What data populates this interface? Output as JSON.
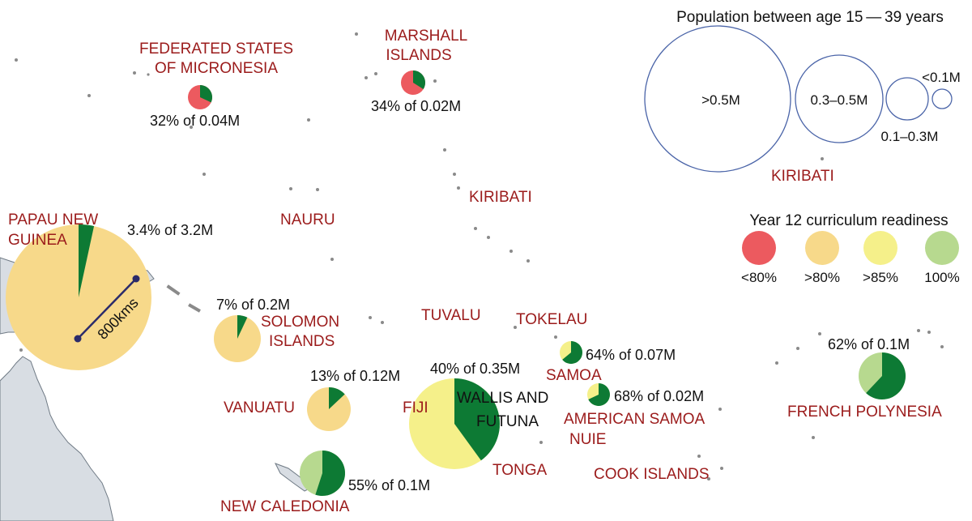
{
  "colors": {
    "below80": "#ec5a5f",
    "above80": "#f7d98a",
    "above85": "#f5f08a",
    "full100": "#b7d98f",
    "share": "#0d7a34",
    "country": "#9b1b1b",
    "bubble_outline": "#4a64a8"
  },
  "countries": {
    "micronesia_l1": "FEDERATED STATES",
    "micronesia_l2": "OF MICRONESIA",
    "marshall_l1": "MARSHALL",
    "marshall_l2": "ISLANDS",
    "kiribati_center": "KIRIBATI",
    "kiribati_right": "KIRIBATI",
    "nauru": "NAURU",
    "png_l1": "PAPAU NEW",
    "png_l2": "GUINEA",
    "solomon_l1": "SOLOMON",
    "solomon_l2": "ISLANDS",
    "tuvalu": "TUVALU",
    "tokelau": "TOKELAU",
    "samoa": "SAMOA",
    "american_samoa": "AMERICAN SAMOA",
    "nuie": "NUIE",
    "vanuatu": "VANUATU",
    "fiji": "FIJI",
    "wallis_l1": "WALLIS AND",
    "wallis_l2": "FUTUNA",
    "tonga": "TONGA",
    "cook": "COOK ISLANDS",
    "new_caledonia": "NEW CALEDONIA",
    "french_polynesia": "FRENCH POLYNESIA"
  },
  "stats": {
    "micronesia": "32% of 0.04M",
    "marshall": "34% of 0.02M",
    "png": "3.4% of 3.2M",
    "solomon": "7% of 0.2M",
    "vanuatu": "13% of 0.12M",
    "fiji": "40% of 0.35M",
    "samoa": "64% of 0.07M",
    "american_samoa": "68% of 0.02M",
    "new_caledonia": "55% of 0.1M",
    "french_polynesia": "62% of 0.1M"
  },
  "pies": {
    "micronesia": {
      "share": 0.32,
      "readiness": "below80"
    },
    "marshall": {
      "share": 0.34,
      "readiness": "below80"
    },
    "png": {
      "share": 0.034,
      "readiness": "above80"
    },
    "solomon": {
      "share": 0.07,
      "readiness": "above80"
    },
    "vanuatu": {
      "share": 0.13,
      "readiness": "above80"
    },
    "fiji": {
      "share": 0.4,
      "readiness": "above85"
    },
    "samoa": {
      "share": 0.64,
      "readiness": "above85"
    },
    "american_samoa": {
      "share": 0.68,
      "readiness": "above85"
    },
    "new_caledonia": {
      "share": 0.55,
      "readiness": "full100"
    },
    "french_polynesia": {
      "share": 0.62,
      "readiness": "full100"
    }
  },
  "scale_label": "800kms",
  "legend": {
    "size_title": "Population between age 15 — 39 years",
    "size_labels": [
      ">0.5M",
      "0.3–0.5M",
      "0.1–0.3M",
      "<0.1M"
    ],
    "color_title": "Year 12 curriculum readiness",
    "color_labels": [
      "<80%",
      ">80%",
      ">85%",
      "100%"
    ]
  }
}
